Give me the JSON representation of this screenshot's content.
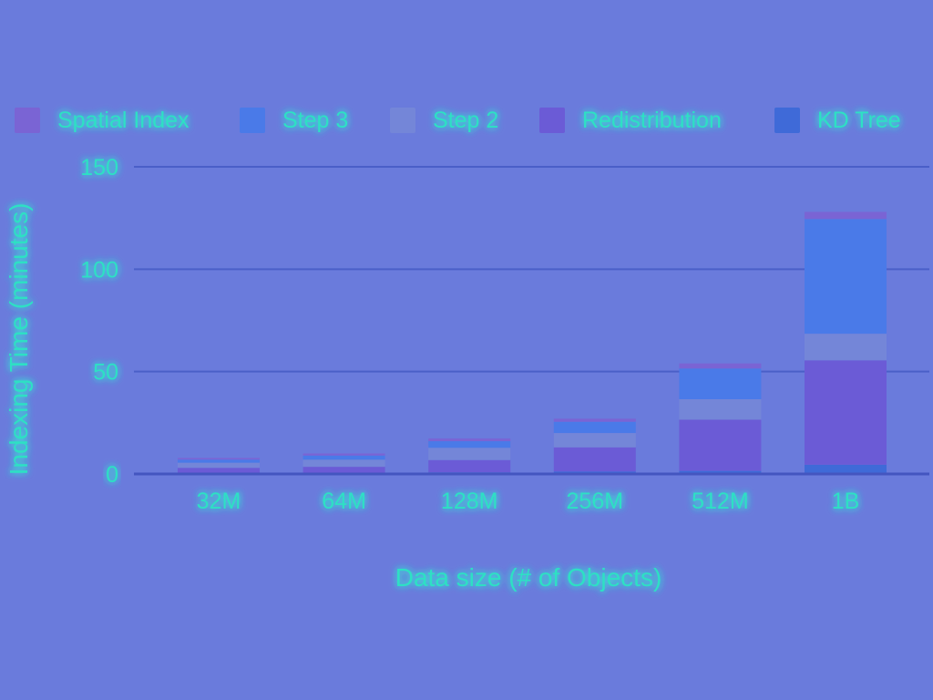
{
  "chart_data": {
    "type": "bar",
    "stacked": true,
    "xlabel": "Data size (# of Objects)",
    "ylabel": "Indexing Time (minutes)",
    "categories": [
      "32M",
      "64M",
      "128M",
      "256M",
      "512M",
      "1B"
    ],
    "ylim": [
      0,
      150
    ],
    "yticks": [
      0,
      50,
      100,
      150
    ],
    "grid": true,
    "legend_position": "top",
    "legend_order": [
      "Spatial Index",
      "Step 3",
      "Step 2",
      "Redistribution",
      "KD Tree"
    ],
    "series": [
      {
        "name": "KD Tree",
        "color": "#3f6ad8",
        "values": [
          0.4,
          0.5,
          0.8,
          1.2,
          1.5,
          4.5
        ]
      },
      {
        "name": "Redistribution",
        "color": "#6b5bd6",
        "values": [
          2.6,
          3.0,
          6.0,
          11.8,
          25.0,
          51.0
        ]
      },
      {
        "name": "Step 2",
        "color": "#7486d8",
        "values": [
          2.5,
          3.5,
          6.0,
          7.0,
          10.0,
          13.0
        ]
      },
      {
        "name": "Step 3",
        "color": "#4a7ae8",
        "values": [
          1.5,
          2.0,
          3.2,
          5.5,
          15.0,
          56.0
        ]
      },
      {
        "name": "Spatial Index",
        "color": "#7a64d4",
        "values": [
          0.8,
          1.0,
          1.3,
          1.5,
          2.5,
          3.5
        ]
      }
    ]
  }
}
